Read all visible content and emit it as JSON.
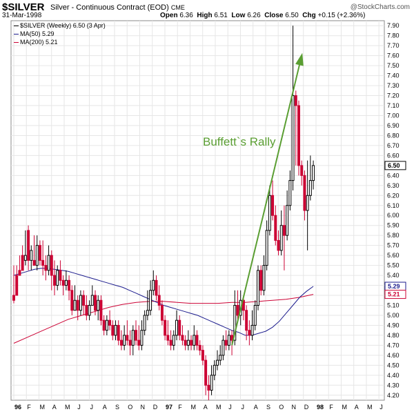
{
  "header": {
    "symbol": "$SILVER",
    "name": "Silver - Continuous Contract (EOD)",
    "exchange": "CME",
    "date": "31-Mar-1998",
    "brand": "@StockCharts.com",
    "open_label": "Open",
    "open": "6.36",
    "high_label": "High",
    "high": "6.51",
    "low_label": "Low",
    "low": "6.26",
    "close_label": "Close",
    "close": "6.50",
    "chg_label": "Chg",
    "chg": "+0.15 (+2.36%)"
  },
  "legend": {
    "price": "$SILVER (Weekly) 6.50 (3 Apr)",
    "ma50": "MA(50) 5.29",
    "ma200": "MA(200) 5.21"
  },
  "colors": {
    "up": "#000000",
    "down": "#cc0033",
    "ma50": "#1a1a8c",
    "ma200": "#cc0033",
    "arrow": "#5a9e32",
    "grid": "#e6e6e6"
  },
  "chart_data": {
    "type": "candlestick",
    "title": "$SILVER Silver - Continuous Contract (EOD) CME",
    "ylim": [
      4.15,
      7.95
    ],
    "y_ticks": [
      "4.20",
      "4.30",
      "4.40",
      "4.50",
      "4.60",
      "4.70",
      "4.80",
      "4.90",
      "5.00",
      "5.10",
      "5.20",
      "5.30",
      "5.40",
      "5.50",
      "5.60",
      "5.70",
      "5.80",
      "5.90",
      "6.00",
      "6.10",
      "6.20",
      "6.30",
      "6.40",
      "6.50",
      "6.60",
      "6.70",
      "6.80",
      "6.90",
      "7.00",
      "7.10",
      "7.20",
      "7.30",
      "7.40",
      "7.50",
      "7.60",
      "7.70",
      "7.80",
      "7.90"
    ],
    "x_ticks": [
      "96",
      "F",
      "M",
      "A",
      "M",
      "J",
      "J",
      "A",
      "S",
      "O",
      "N",
      "D",
      "97",
      "F",
      "M",
      "A",
      "M",
      "J",
      "J",
      "A",
      "S",
      "O",
      "N",
      "D",
      "98",
      "F",
      "M",
      "A",
      "M",
      "J"
    ],
    "x_start_week": 0,
    "weeks": 126,
    "annotation": "Buffett`s Rally",
    "last_value_tags": [
      {
        "label": "6.50",
        "value": 6.5,
        "color": "#000000"
      },
      {
        "label": "5.29",
        "value": 5.29,
        "color": "#1a1a8c"
      },
      {
        "label": "5.21",
        "value": 5.21,
        "color": "#cc0033"
      }
    ],
    "candles": [
      [
        5.2,
        5.15,
        5.5,
        5.12
      ],
      [
        5.4,
        5.2,
        5.5,
        5.4
      ],
      [
        5.45,
        5.4,
        5.6,
        5.4
      ],
      [
        5.6,
        5.45,
        5.7,
        5.45
      ],
      [
        5.55,
        5.6,
        5.85,
        5.5
      ],
      [
        5.85,
        5.55,
        5.9,
        5.45
      ],
      [
        5.55,
        5.65,
        5.7,
        5.45
      ],
      [
        5.55,
        5.5,
        5.8,
        5.5
      ],
      [
        5.5,
        5.7,
        5.8,
        5.45
      ],
      [
        5.7,
        5.55,
        5.75,
        5.5
      ],
      [
        5.55,
        5.5,
        5.75,
        5.4
      ],
      [
        5.5,
        5.45,
        5.6,
        5.35
      ],
      [
        5.45,
        5.6,
        5.7,
        5.4
      ],
      [
        5.6,
        5.4,
        5.65,
        5.25
      ],
      [
        5.4,
        5.3,
        5.55,
        5.2
      ],
      [
        5.3,
        5.45,
        5.5,
        5.25
      ],
      [
        5.45,
        5.35,
        5.55,
        5.3
      ],
      [
        5.35,
        5.3,
        5.4,
        5.2
      ],
      [
        5.3,
        5.35,
        5.45,
        5.25
      ],
      [
        5.35,
        5.25,
        5.4,
        5.15
      ],
      [
        5.25,
        5.05,
        5.3,
        5.0
      ],
      [
        5.05,
        5.15,
        5.3,
        5.05
      ],
      [
        5.15,
        5.05,
        5.2,
        4.95
      ],
      [
        5.05,
        5.2,
        5.25,
        5.0
      ],
      [
        5.2,
        5.1,
        5.25,
        5.0
      ],
      [
        5.1,
        5.0,
        5.2,
        4.95
      ],
      [
        5.0,
        5.1,
        5.15,
        4.95
      ],
      [
        5.1,
        5.2,
        5.3,
        5.1
      ],
      [
        5.2,
        5.05,
        5.25,
        5.0
      ],
      [
        5.05,
        5.15,
        5.2,
        4.95
      ],
      [
        5.15,
        4.95,
        5.2,
        4.9
      ],
      [
        4.95,
        4.85,
        5.0,
        4.8
      ],
      [
        4.85,
        4.95,
        5.0,
        4.8
      ],
      [
        4.95,
        4.9,
        5.05,
        4.85
      ],
      [
        4.9,
        4.8,
        4.95,
        4.75
      ],
      [
        4.8,
        4.9,
        4.95,
        4.75
      ],
      [
        4.9,
        4.75,
        4.95,
        4.7
      ],
      [
        4.75,
        4.7,
        4.85,
        4.65
      ],
      [
        4.7,
        4.8,
        4.9,
        4.65
      ],
      [
        4.8,
        4.75,
        4.95,
        4.7
      ],
      [
        4.75,
        4.7,
        4.85,
        4.6
      ],
      [
        4.7,
        4.85,
        4.9,
        4.6
      ],
      [
        4.85,
        4.75,
        4.95,
        4.7
      ],
      [
        4.75,
        4.7,
        4.9,
        4.65
      ],
      [
        4.7,
        4.85,
        4.95,
        4.65
      ],
      [
        4.85,
        5.0,
        5.05,
        4.8
      ],
      [
        5.0,
        5.05,
        5.25,
        4.95
      ],
      [
        5.05,
        5.25,
        5.35,
        5.0
      ],
      [
        5.25,
        5.35,
        5.45,
        5.2
      ],
      [
        5.35,
        5.2,
        5.4,
        5.15
      ],
      [
        5.2,
        5.1,
        5.3,
        5.05
      ],
      [
        5.1,
        4.95,
        5.15,
        4.9
      ],
      [
        4.95,
        4.8,
        5.0,
        4.75
      ],
      [
        4.8,
        4.75,
        4.95,
        4.7
      ],
      [
        4.75,
        4.7,
        4.85,
        4.65
      ],
      [
        4.7,
        4.8,
        4.85,
        4.65
      ],
      [
        4.8,
        4.95,
        5.05,
        4.75
      ],
      [
        4.95,
        4.8,
        5.0,
        4.75
      ],
      [
        4.8,
        4.75,
        4.9,
        4.7
      ],
      [
        4.75,
        4.7,
        4.8,
        4.65
      ],
      [
        4.7,
        4.75,
        4.85,
        4.65
      ],
      [
        4.75,
        4.7,
        4.8,
        4.65
      ],
      [
        4.7,
        4.8,
        4.9,
        4.65
      ],
      [
        4.8,
        4.7,
        4.85,
        4.65
      ],
      [
        4.7,
        4.65,
        4.75,
        4.6
      ],
      [
        4.65,
        4.55,
        4.7,
        4.5
      ],
      [
        4.55,
        4.3,
        4.6,
        4.2
      ],
      [
        4.3,
        4.25,
        4.4,
        4.15
      ],
      [
        4.25,
        4.4,
        4.5,
        4.2
      ],
      [
        4.4,
        4.5,
        4.55,
        4.35
      ],
      [
        4.5,
        4.55,
        4.65,
        4.45
      ],
      [
        4.55,
        4.6,
        4.7,
        4.5
      ],
      [
        4.6,
        4.75,
        4.8,
        4.55
      ],
      [
        4.75,
        4.7,
        4.85,
        4.65
      ],
      [
        4.7,
        4.8,
        4.85,
        4.65
      ],
      [
        4.8,
        4.75,
        4.85,
        4.6
      ],
      [
        4.75,
        5.1,
        5.25,
        4.7
      ],
      [
        5.1,
        5.0,
        5.25,
        4.95
      ],
      [
        5.0,
        5.15,
        5.25,
        4.9
      ],
      [
        5.15,
        5.05,
        5.2,
        4.95
      ],
      [
        5.05,
        4.85,
        5.1,
        4.75
      ],
      [
        4.85,
        4.8,
        4.95,
        4.7
      ],
      [
        4.8,
        4.9,
        5.05,
        4.75
      ],
      [
        4.9,
        5.1,
        5.15,
        4.85
      ],
      [
        5.1,
        5.45,
        5.5,
        5.05
      ],
      [
        5.45,
        5.25,
        5.5,
        5.2
      ],
      [
        5.25,
        5.5,
        5.6,
        5.2
      ],
      [
        5.5,
        5.85,
        5.95,
        5.45
      ],
      [
        5.85,
        6.2,
        6.3,
        5.8
      ],
      [
        6.2,
        6.0,
        6.35,
        5.95
      ],
      [
        6.0,
        5.75,
        6.1,
        5.7
      ],
      [
        5.75,
        5.65,
        5.85,
        5.6
      ],
      [
        5.65,
        5.9,
        6.05,
        5.6
      ],
      [
        5.9,
        5.8,
        6.1,
        5.45
      ],
      [
        5.8,
        6.1,
        6.25,
        5.75
      ],
      [
        6.1,
        6.35,
        6.45,
        6.05
      ],
      [
        6.35,
        7.2,
        7.9,
        6.25
      ],
      [
        7.2,
        7.1,
        7.25,
        6.5
      ],
      [
        7.1,
        6.5,
        7.15,
        6.4
      ],
      [
        6.5,
        6.4,
        6.55,
        6.3
      ],
      [
        6.4,
        6.05,
        6.45,
        5.95
      ],
      [
        6.05,
        6.2,
        6.55,
        5.65
      ],
      [
        6.2,
        6.35,
        6.6,
        6.15
      ],
      [
        6.35,
        6.5,
        6.55,
        6.26
      ]
    ],
    "ma50": [
      5.4,
      5.42,
      5.44,
      5.46,
      5.47,
      5.47,
      5.46,
      5.45,
      5.44,
      5.42,
      5.4,
      5.38,
      5.36,
      5.34,
      5.32,
      5.3,
      5.28,
      5.25,
      5.22,
      5.19,
      5.16,
      5.13,
      5.1,
      5.08,
      5.06,
      5.04,
      5.02,
      5.0,
      4.97,
      4.94,
      4.91,
      4.88,
      4.85,
      4.83,
      4.8,
      4.8,
      4.82,
      4.84,
      4.88,
      4.94,
      5.02,
      5.1,
      5.18,
      5.24,
      5.29
    ],
    "ma200": [
      4.72,
      4.78,
      4.84,
      4.9,
      4.96,
      5.0,
      5.04,
      5.08,
      5.11,
      5.13,
      5.14,
      5.14,
      5.13,
      5.12,
      5.12,
      5.12,
      5.13,
      5.13,
      5.14,
      5.15,
      5.16,
      5.18,
      5.21
    ]
  }
}
